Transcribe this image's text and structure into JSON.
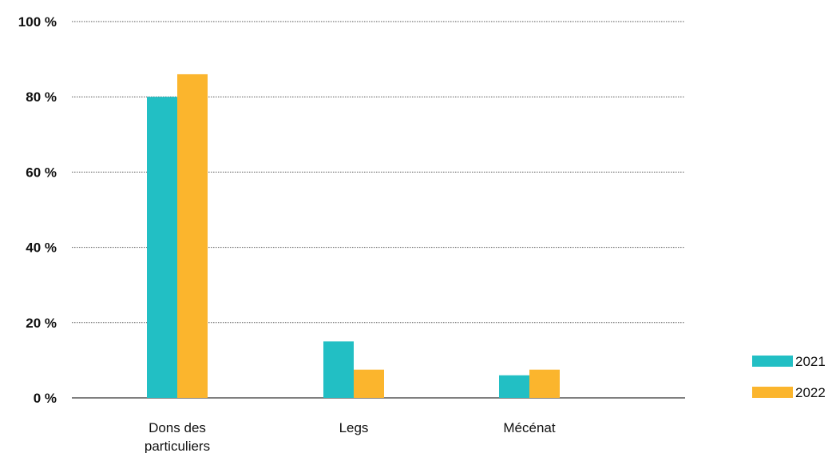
{
  "chart_data": {
    "type": "bar",
    "title": "",
    "xlabel": "",
    "ylabel": "",
    "categories": [
      [
        "Dons des",
        "particuliers"
      ],
      [
        "Legs"
      ],
      [
        "Mécénat"
      ]
    ],
    "series": [
      {
        "name": "2021",
        "color": "#22bfc4",
        "values": [
          80,
          15,
          6
        ]
      },
      {
        "name": "2022",
        "color": "#fbb52d",
        "values": [
          86,
          7.5,
          7.5
        ]
      }
    ],
    "ylim": [
      0,
      100
    ],
    "yticks": [
      0,
      20,
      40,
      60,
      80,
      100
    ],
    "ytick_labels": [
      "0 %",
      "20 %",
      "40 %",
      "60 %",
      "80 %",
      "100 %"
    ],
    "grid": true,
    "legend_position": "bottom-right"
  }
}
